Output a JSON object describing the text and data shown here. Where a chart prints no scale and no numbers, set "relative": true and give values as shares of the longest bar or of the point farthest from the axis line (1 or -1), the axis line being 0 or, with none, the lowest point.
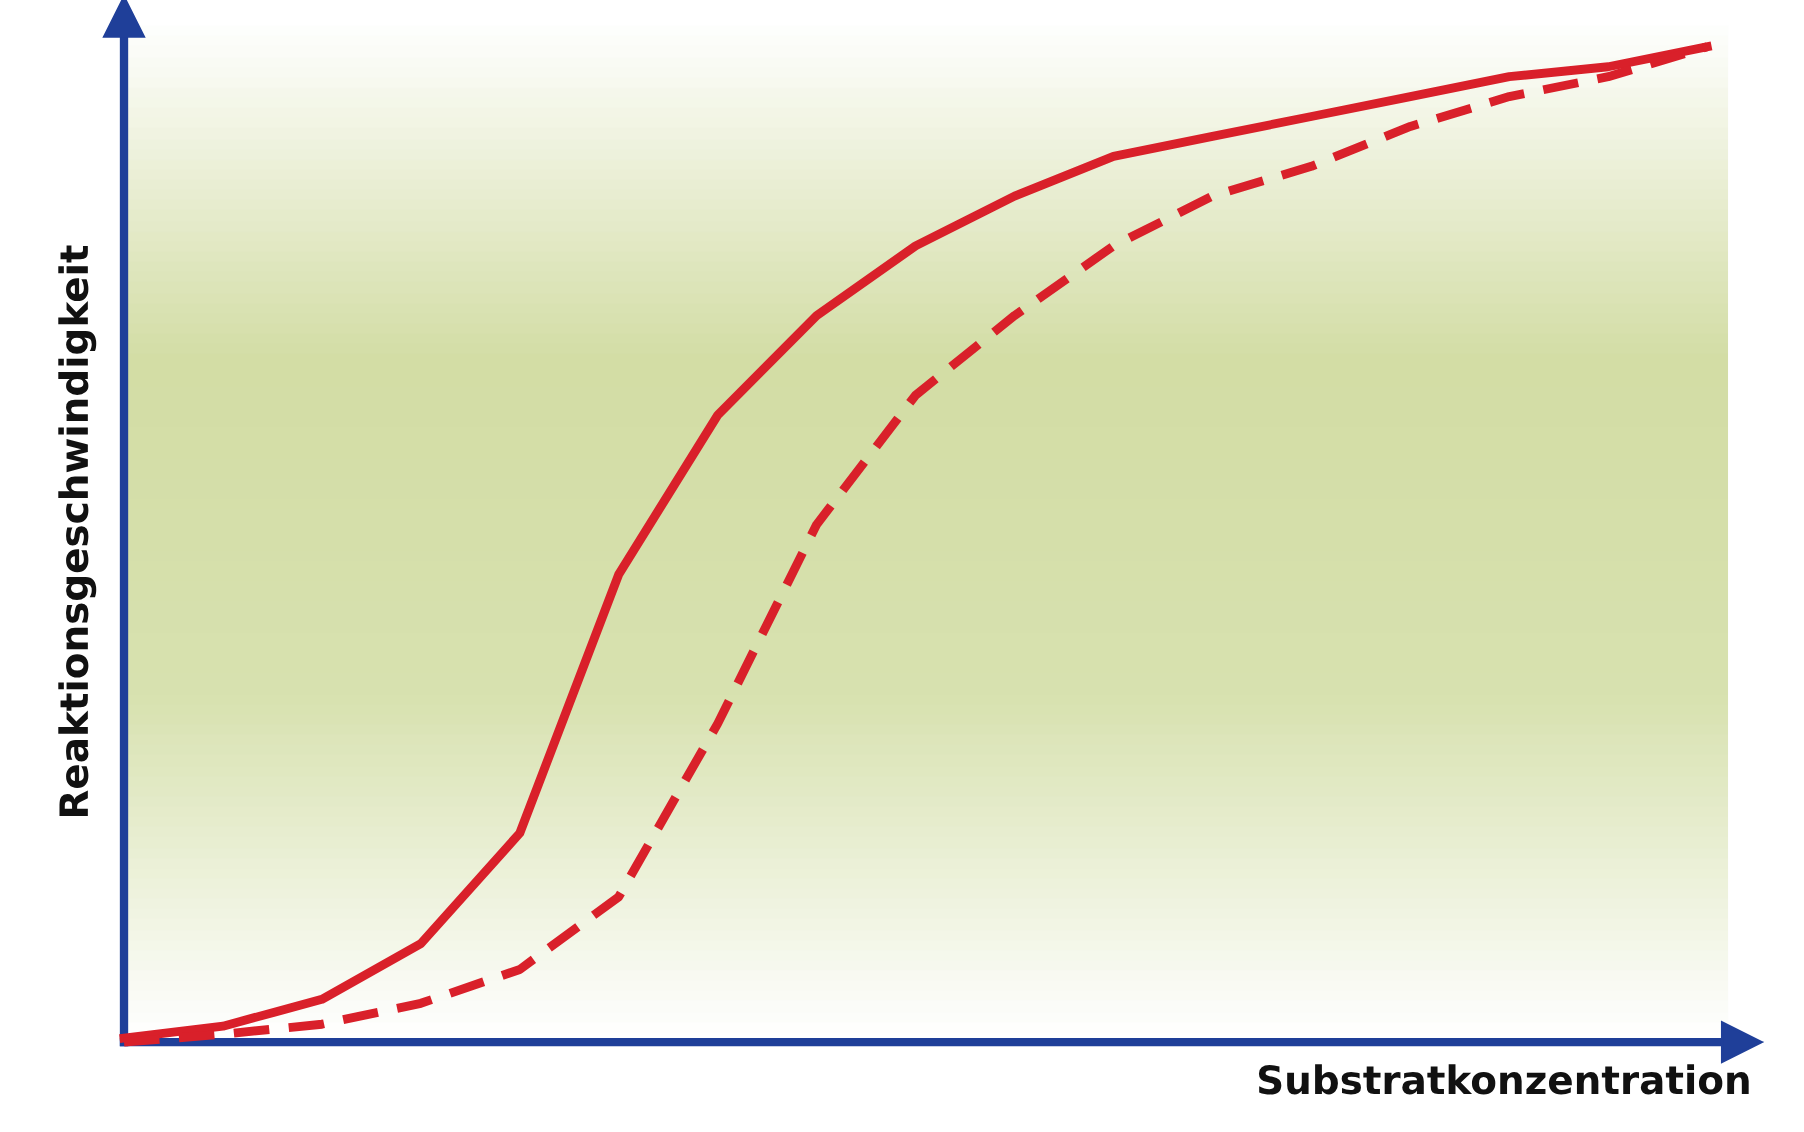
{
  "chart_data": {
    "type": "line",
    "relative": true,
    "xlabel": "Substratkonzentration",
    "ylabel": "Reaktionsgeschwindigkeit",
    "legend": false,
    "categories": [
      null,
      null,
      null,
      null,
      null,
      null,
      null,
      null,
      null,
      null,
      null,
      null,
      null,
      null,
      null,
      null,
      null
    ],
    "series": [
      {
        "color": "#d9202a",
        "line_style": "solid",
        "values": [
          0.004,
          0.016,
          0.043,
          0.099,
          0.21,
          0.47,
          0.63,
          0.73,
          0.8,
          0.85,
          0.89,
          0.91,
          0.93,
          0.95,
          0.97,
          0.98,
          1.0
        ]
      },
      {
        "color": "#d9202a",
        "line_style": "dashed",
        "values": [
          0.0,
          0.008,
          0.018,
          0.039,
          0.073,
          0.146,
          0.32,
          0.52,
          0.65,
          0.73,
          0.8,
          0.85,
          0.88,
          0.92,
          0.95,
          0.97,
          1.0
        ]
      }
    ]
  }
}
